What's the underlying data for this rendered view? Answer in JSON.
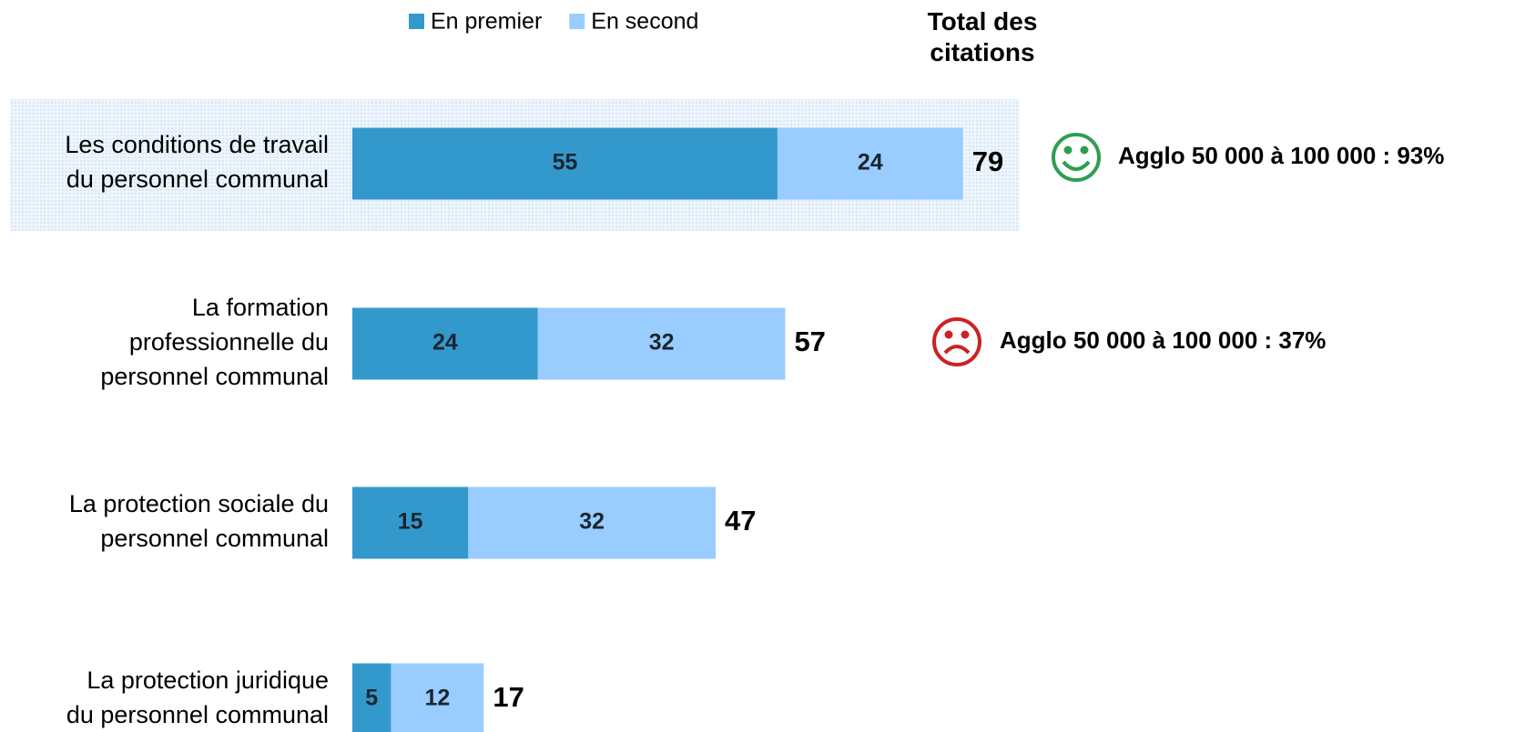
{
  "chart_data": {
    "type": "stacked-bar-horizontal",
    "categories": [
      "Les conditions de travail\ndu personnel communal",
      "La formation\nprofessionnelle du\npersonnel communal",
      "La protection sociale du\npersonnel communal",
      "La protection juridique\ndu personnel communal"
    ],
    "series": [
      {
        "name": "En premier",
        "color": "#3399cc",
        "values": [
          55,
          24,
          15,
          5
        ]
      },
      {
        "name": "En second",
        "color": "#99ccff",
        "values": [
          24,
          32,
          32,
          12
        ]
      }
    ],
    "totals_header": "Total des citations",
    "totals": [
      79,
      57,
      47,
      17
    ],
    "annotations": [
      "Agglo 50 000 à 100 000 : 93%",
      "Agglo 50 000 à 100 000 : 37%"
    ]
  }
}
